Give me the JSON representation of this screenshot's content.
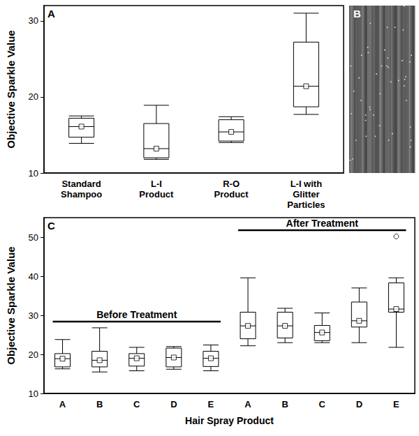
{
  "chart_data": [
    {
      "type": "boxplot",
      "panel": "A",
      "y_label": "Objective Sparkle Value",
      "categories": [
        "Standard Shampoo",
        "L-I Product",
        "R-O Product",
        "L-I with Glitter Particles"
      ],
      "values": [
        [
          13.9,
          14.7,
          16.1,
          17.2,
          17.5
        ],
        [
          11.8,
          12.0,
          13.2,
          16.5,
          18.9
        ],
        [
          14.0,
          14.2,
          15.4,
          17.0,
          17.4
        ],
        [
          17.7,
          18.7,
          21.4,
          27.2,
          31.0
        ]
      ],
      "ylim": [
        10,
        32
      ],
      "yticks": [
        10,
        20,
        30
      ],
      "marker": "square",
      "grid": false
    },
    {
      "type": "image",
      "panel": "B"
    },
    {
      "type": "boxplot",
      "panel": "C",
      "x_label": "Hair Spray Product",
      "y_label": "Objective Sparkle Value",
      "categories": [
        "A",
        "B",
        "C",
        "D",
        "E",
        "A",
        "B",
        "C",
        "D",
        "E"
      ],
      "groups": [
        {
          "label": "Before Treatment",
          "size": 5
        },
        {
          "label": "After Treatment",
          "size": 5
        }
      ],
      "values": [
        [
          16.3,
          16.8,
          18.9,
          20.2,
          23.8
        ],
        [
          15.5,
          16.8,
          18.5,
          20.8,
          26.8
        ],
        [
          15.8,
          17.0,
          19.0,
          20.2,
          21.8
        ],
        [
          16.2,
          16.8,
          19.2,
          21.6,
          22.0
        ],
        [
          15.8,
          16.9,
          19.0,
          20.8,
          22.4
        ],
        [
          22.2,
          24.0,
          27.3,
          30.8,
          39.6
        ],
        [
          23.0,
          24.2,
          27.3,
          30.8,
          31.8
        ],
        [
          23.0,
          23.5,
          25.6,
          27.4,
          30.6
        ],
        [
          23.0,
          27.0,
          28.6,
          33.4,
          37.0
        ],
        [
          21.8,
          30.8,
          31.6,
          38.3,
          39.6
        ]
      ],
      "outliers": [
        [],
        [],
        [],
        [],
        [],
        [],
        [],
        [],
        [],
        [
          50.2
        ]
      ],
      "ylim": [
        10,
        55
      ],
      "yticks": [
        10,
        20,
        30,
        40,
        50
      ],
      "marker": "square",
      "grid": false
    }
  ]
}
